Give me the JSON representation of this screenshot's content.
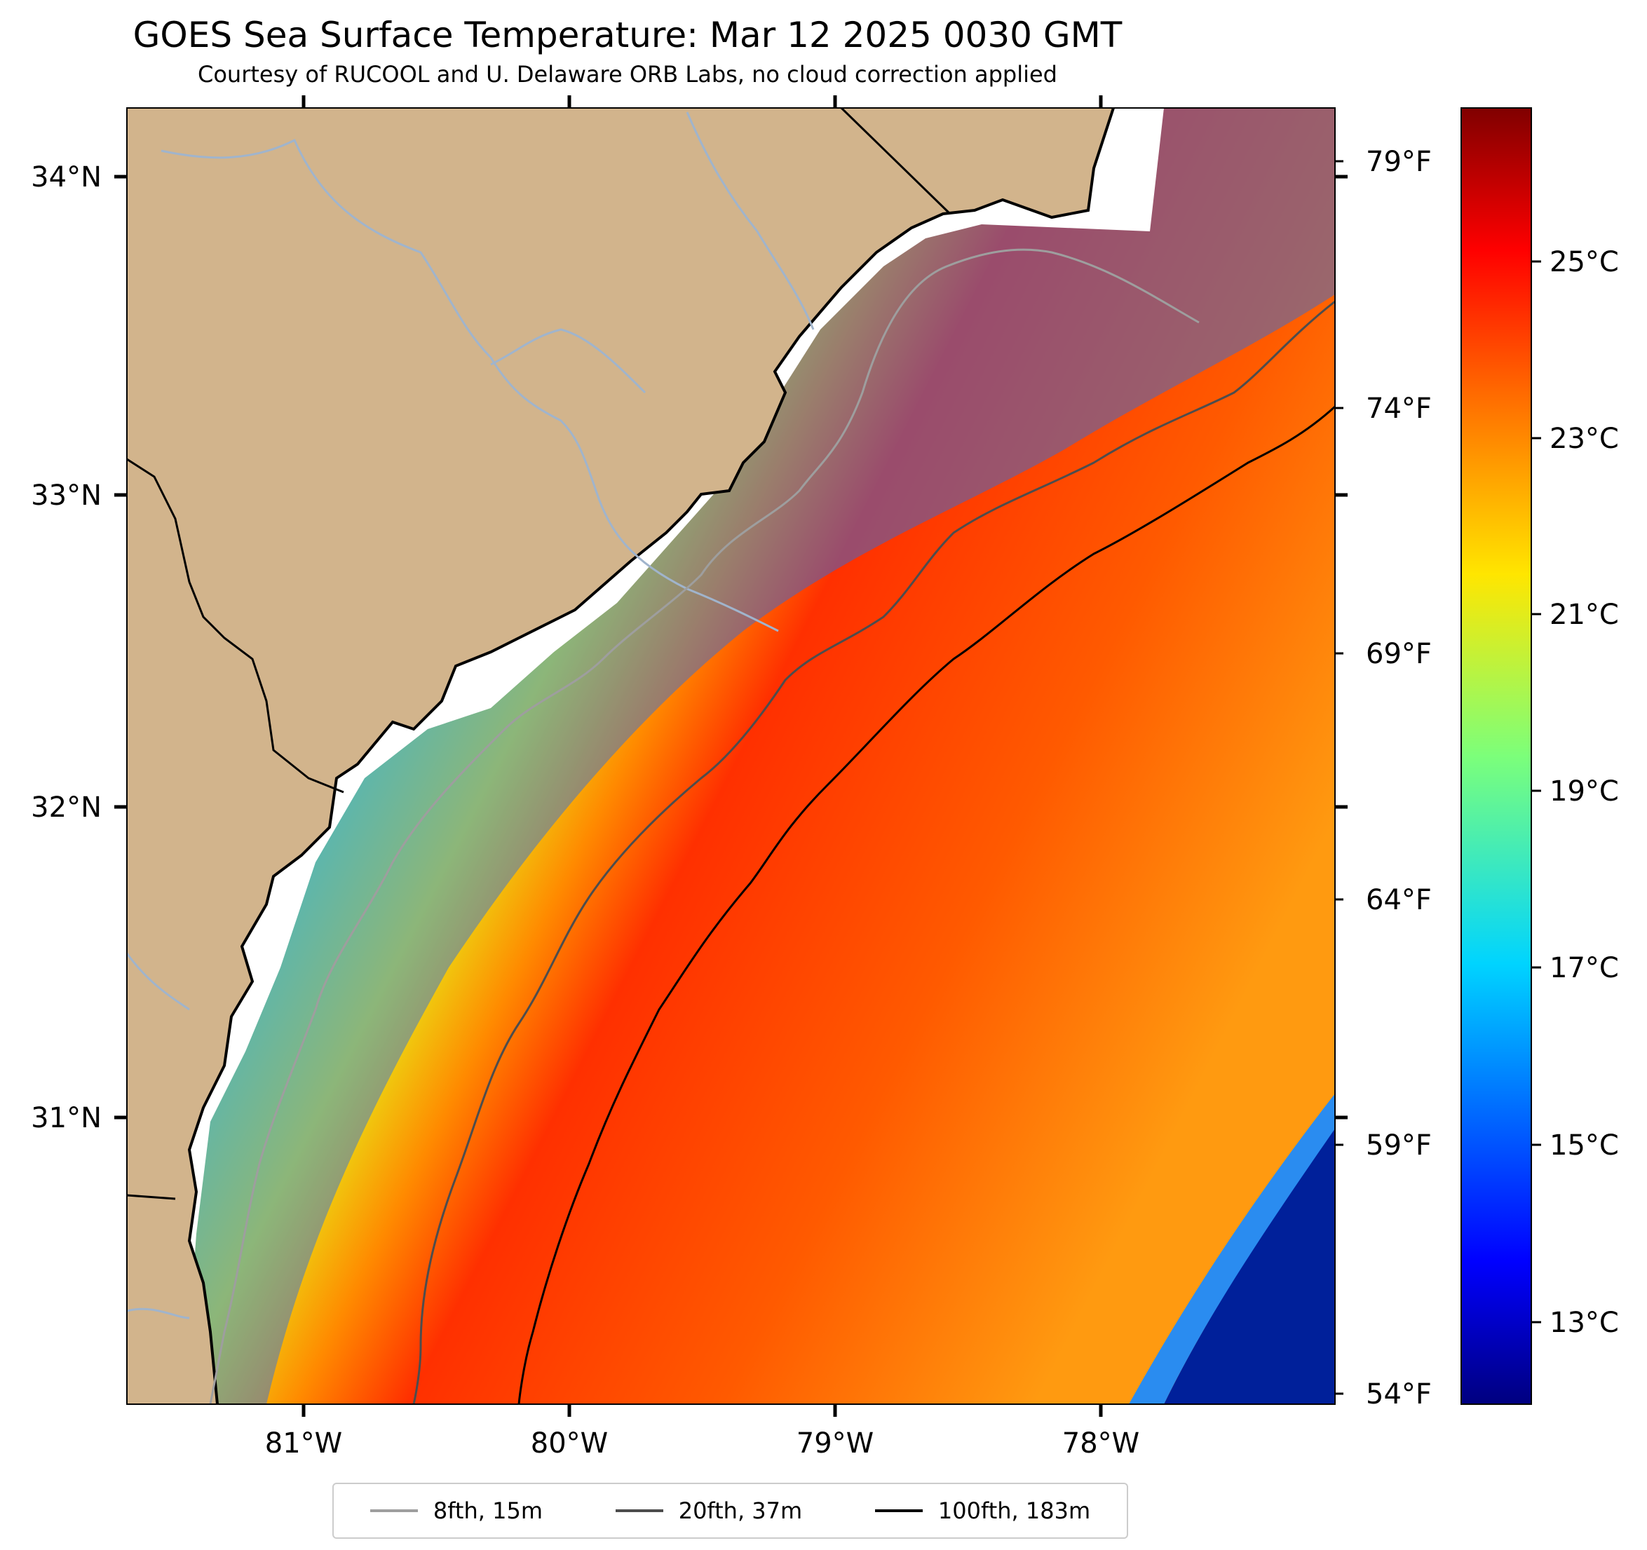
{
  "title": "GOES Sea Surface Temperature: Mar 12 2025 0030 GMT",
  "subtitle": "Courtesy of RUCOOL and U. Delaware ORB Labs, no cloud correction applied",
  "colors": {
    "land": "#d2b48c",
    "river": "#a0b4cc",
    "iso_8fth": "#9e9e9e",
    "iso_20fth": "#4d4d4d",
    "iso_100fth": "#000000"
  },
  "map": {
    "longitude_labels": [
      "81°W",
      "80°W",
      "79°W",
      "78°W"
    ],
    "latitude_labels": [
      "34°N",
      "33°N",
      "32°N",
      "31°N"
    ],
    "fahrenheit_labels": [
      "79°F",
      "74°F",
      "69°F",
      "64°F",
      "59°F",
      "54°F"
    ]
  },
  "colorbar": {
    "labels": [
      "25°C",
      "23°C",
      "21°C",
      "19°C",
      "17°C",
      "15°C",
      "13°C"
    ]
  },
  "legend": {
    "items": [
      {
        "label": "8fth, 15m"
      },
      {
        "label": "20fth, 37m"
      },
      {
        "label": "100fth, 183m"
      }
    ]
  }
}
